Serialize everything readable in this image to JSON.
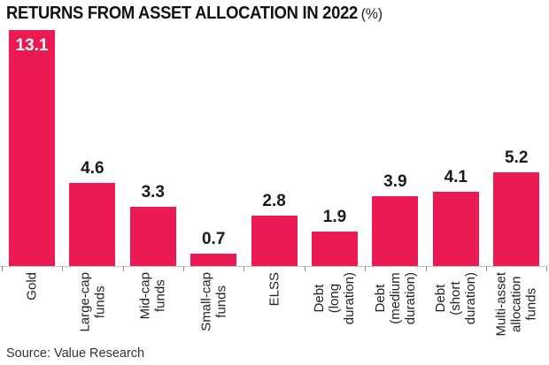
{
  "header": {
    "title": "RETURNS FROM ASSET ALLOCATION IN 2022",
    "unit": "(%)"
  },
  "source": "Source: Value Research",
  "colors": {
    "bar": "#eb1a52",
    "title_text": "#111111",
    "value_label": "#1a1a1a",
    "value_label_inside": "#ffffff",
    "axis_line": "#c6c6c6",
    "tick": "#8f8f8f",
    "category_label": "#222222",
    "source_text": "#333333",
    "background": "#ffffff"
  },
  "chart_data": {
    "type": "bar",
    "title": "RETURNS FROM ASSET ALLOCATION IN 2022 (%)",
    "categories": [
      "Gold",
      "Large-cap funds",
      "Mid-cap funds",
      "Small-cap funds",
      "ELSS",
      "Debt (long duration)",
      "Debt (medium duration)",
      "Debt (short duration)",
      "Multi-asset allocation funds"
    ],
    "category_label_lines": [
      [
        "Gold"
      ],
      [
        "Large-cap",
        "funds"
      ],
      [
        "Mid-cap",
        "funds"
      ],
      [
        "Small-cap",
        "funds"
      ],
      [
        "ELSS"
      ],
      [
        "Debt",
        "(long",
        "duration)"
      ],
      [
        "Debt",
        "(medium",
        "duration)"
      ],
      [
        "Debt",
        "(short",
        "duration)"
      ],
      [
        "Multi-asset",
        "allocation",
        "funds"
      ]
    ],
    "values": [
      13.1,
      4.6,
      3.3,
      0.7,
      2.8,
      1.9,
      3.9,
      4.1,
      5.2
    ],
    "value_labels": [
      "13.1",
      "4.6",
      "3.3",
      "0.7",
      "2.8",
      "1.9",
      "3.9",
      "4.1",
      "5.2"
    ],
    "value_label_position": [
      "inside-top",
      "above",
      "above",
      "above",
      "above",
      "above",
      "above",
      "above",
      "above"
    ],
    "xlabel": "",
    "ylabel": "",
    "ylim": [
      0,
      13.1
    ],
    "grid": false,
    "legend": false,
    "bar_color": "#eb1a52",
    "orientation": "vertical",
    "category_labels_rotated_degrees": -90
  }
}
